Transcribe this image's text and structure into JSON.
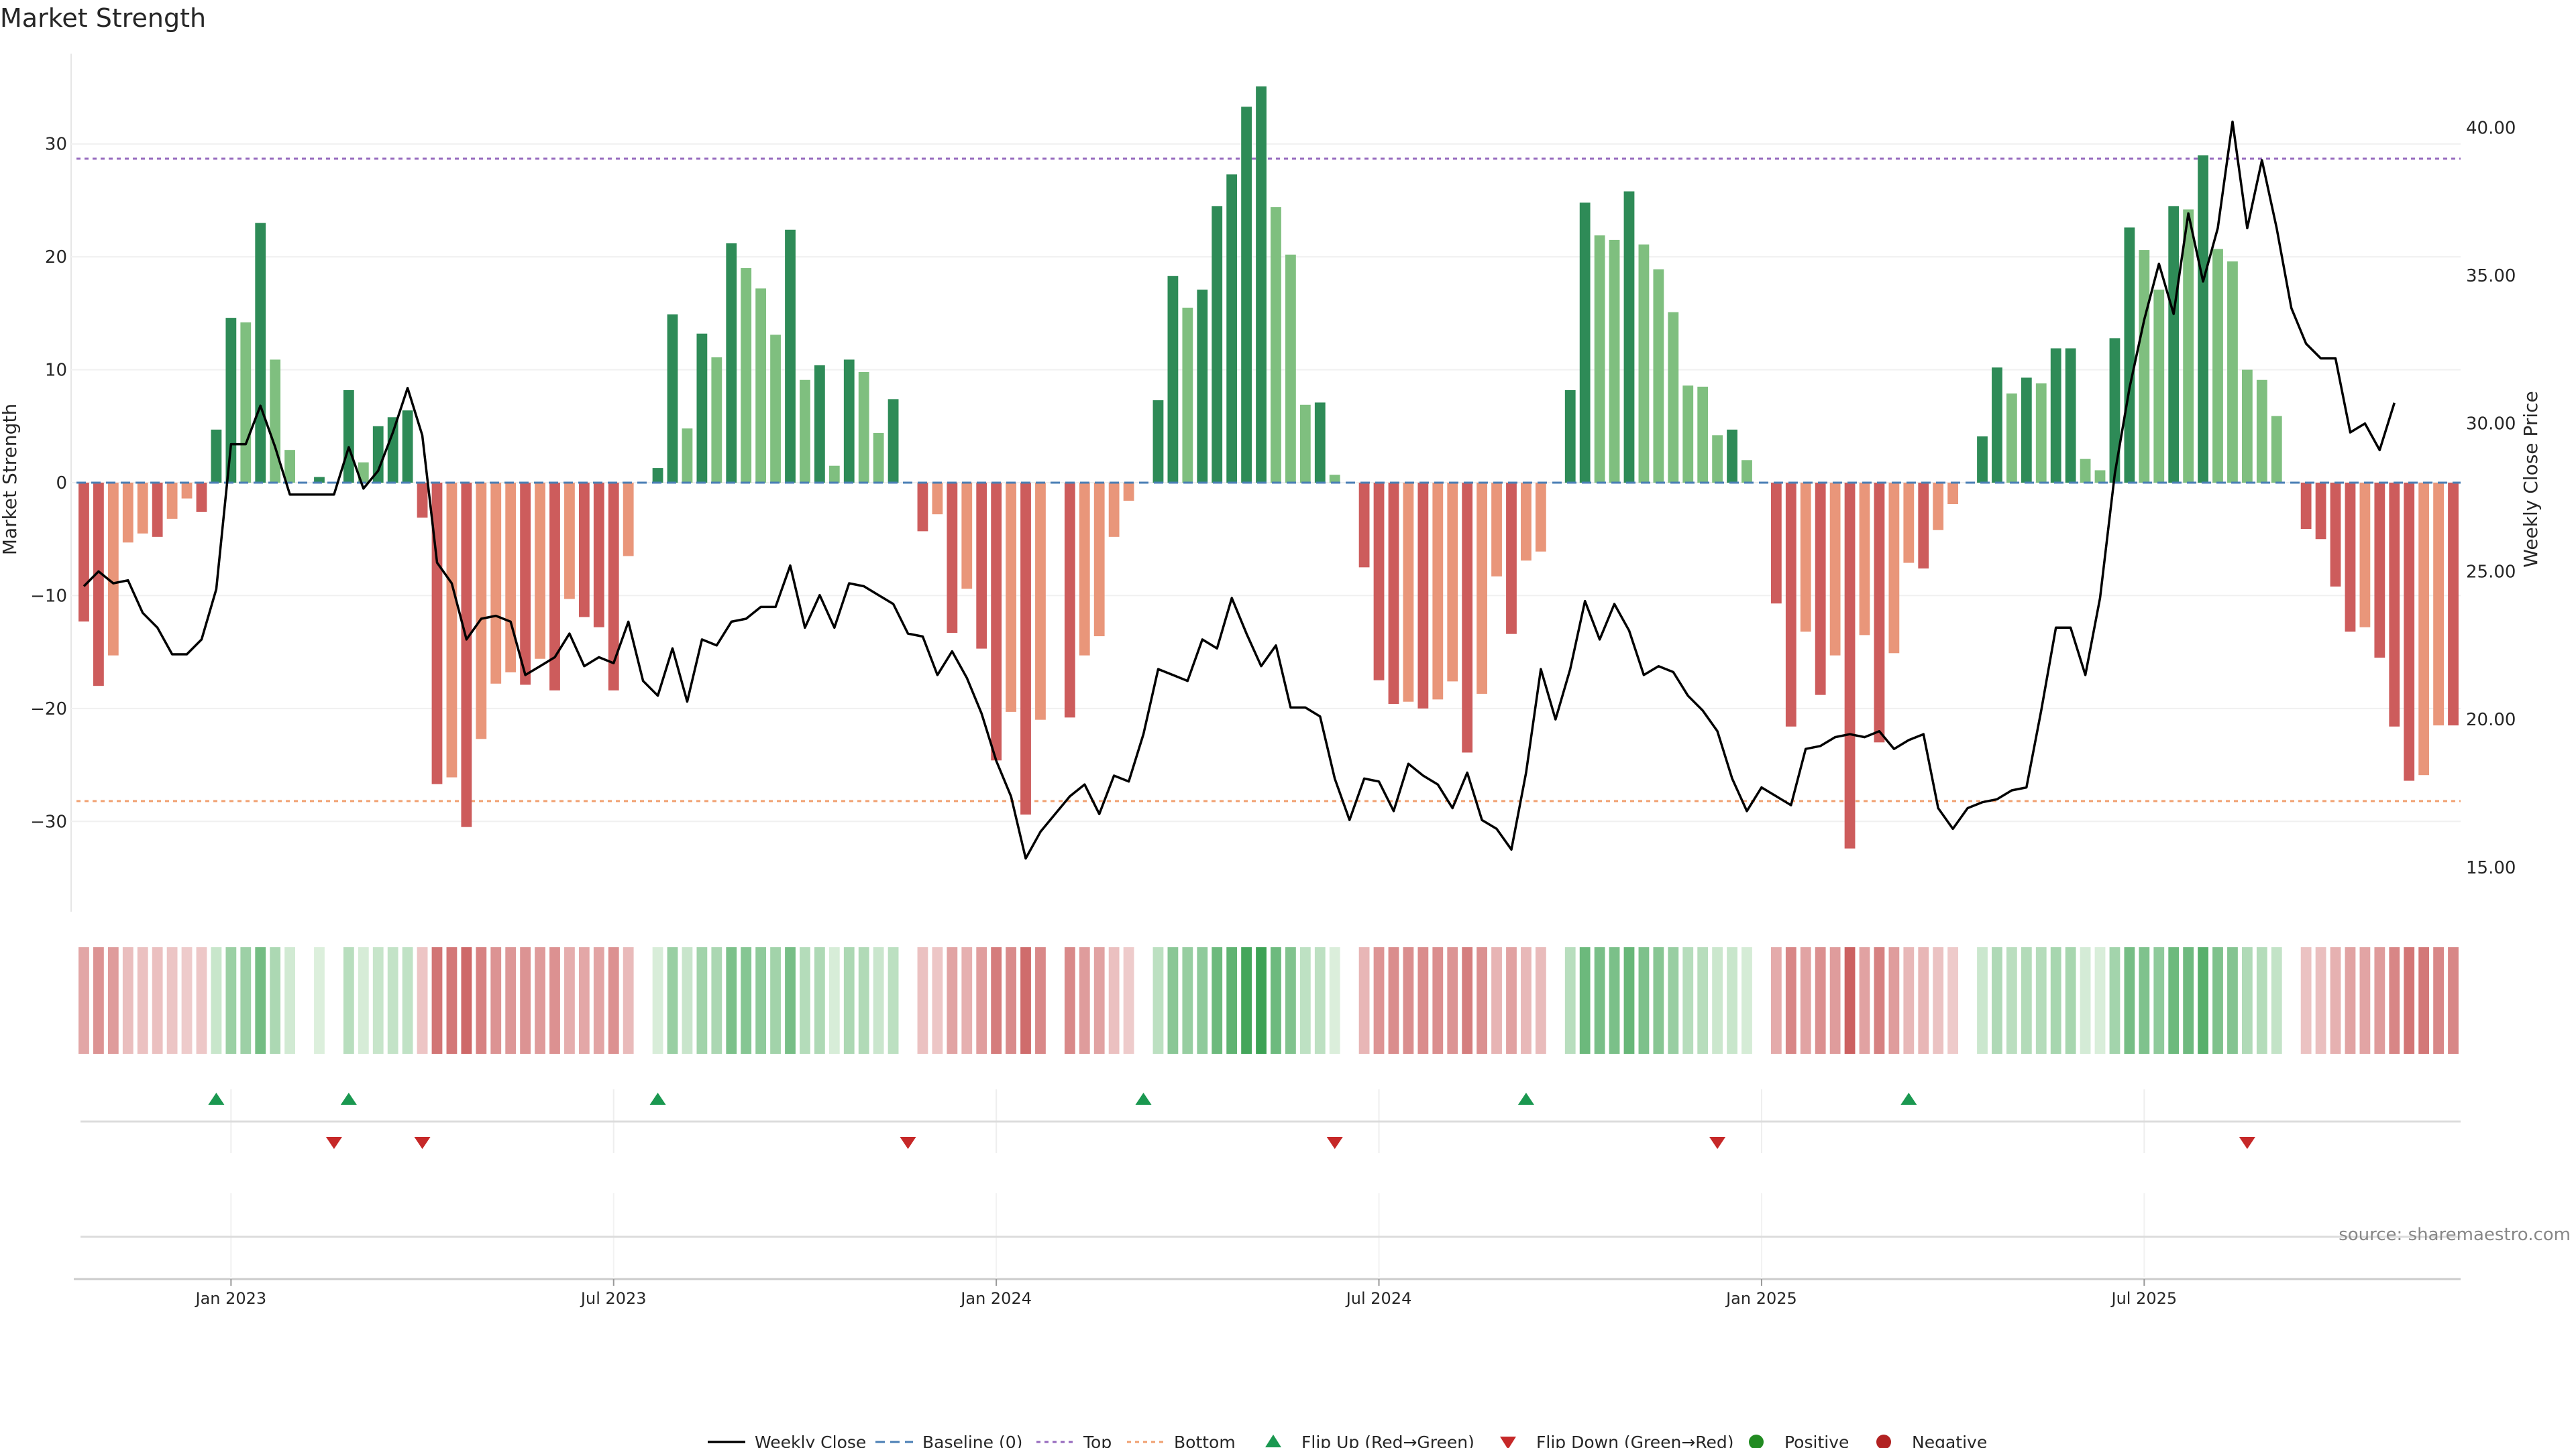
{
  "chart_data": {
    "type": "bar",
    "title": "Market Strength",
    "ylabel": "Market Strength",
    "y2label": "Weekly Close Price",
    "source": "source: sharemaestro.com",
    "ylim": [
      -38,
      38
    ],
    "y2lim": [
      13.5,
      42.5
    ],
    "yticks": [
      30,
      20,
      10,
      0,
      -10,
      -20,
      -30
    ],
    "ytick_labels": [
      "30",
      "20",
      "10",
      "0",
      "−10",
      "−20",
      "−30"
    ],
    "y2ticks": [
      40,
      35,
      30,
      25,
      20,
      15
    ],
    "y2tick_labels": [
      "40.00",
      "35.00",
      "30.00",
      "25.00",
      "20.00",
      "15.00"
    ],
    "xticks": [
      {
        "week": 10,
        "label": "Jan 2023"
      },
      {
        "week": 36,
        "label": "Jul 2023"
      },
      {
        "week": 62,
        "label": "Jan 2024"
      },
      {
        "week": 88,
        "label": "Jul 2024"
      },
      {
        "week": 114,
        "label": "Jan 2025"
      },
      {
        "week": 140,
        "label": "Jul 2025"
      }
    ],
    "thresholds": {
      "top": 28.7,
      "bottom": -28.2
    },
    "strength": [
      -12.3,
      -18,
      -15.3,
      -5.3,
      -4.5,
      -4.8,
      -3.2,
      -1.4,
      -2.6,
      4.7,
      14.6,
      14.2,
      23,
      10.9,
      2.9,
      0,
      0.5,
      0,
      8.2,
      1.8,
      5,
      5.8,
      6.4,
      -3.1,
      -26.7,
      -26.1,
      -30.5,
      -22.7,
      -17.8,
      -16.8,
      -17.9,
      -15.6,
      -18.4,
      -10.3,
      -11.9,
      -12.8,
      -18.4,
      -6.5,
      0,
      1.3,
      14.9,
      4.8,
      13.2,
      11.1,
      21.2,
      19,
      17.2,
      13.1,
      22.4,
      9.1,
      10.4,
      1.5,
      10.9,
      9.8,
      4.4,
      7.4,
      0,
      -4.3,
      -2.8,
      -13.3,
      -9.4,
      -14.7,
      -24.6,
      -20.3,
      -29.4,
      -21,
      0,
      -20.8,
      -15.3,
      -13.6,
      -4.8,
      -1.6,
      0,
      7.3,
      18.3,
      15.5,
      17.1,
      24.5,
      27.3,
      33.3,
      35.1,
      24.4,
      20.2,
      6.9,
      7.1,
      0.7,
      0,
      -7.5,
      -17.5,
      -19.6,
      -19.4,
      -20,
      -19.2,
      -17.6,
      -23.9,
      -18.7,
      -8.3,
      -13.4,
      -6.9,
      -6.1,
      0,
      8.2,
      24.8,
      21.9,
      21.5,
      25.8,
      21.1,
      18.9,
      15.1,
      8.6,
      8.5,
      4.2,
      4.7,
      2,
      0,
      -10.7,
      -21.6,
      -13.2,
      -18.8,
      -15.3,
      -32.4,
      -13.5,
      -23,
      -15.1,
      -7.1,
      -7.6,
      -4.2,
      -1.9,
      0,
      4.1,
      10.2,
      7.9,
      9.3,
      8.8,
      11.9,
      11.9,
      2.1,
      1.1,
      12.8,
      22.6,
      20.6,
      17.1,
      24.5,
      24.2,
      29,
      20.7,
      19.6,
      10,
      9.1,
      5.9,
      0,
      -4.1,
      -5,
      -9.2,
      -13.2,
      -12.8,
      -15.5,
      -21.6,
      -26.4,
      -25.9,
      -21.5,
      -21.5
    ],
    "close": [
      24.5,
      25,
      24.6,
      24.7,
      23.6,
      23.1,
      22.2,
      22.2,
      22.7,
      24.4,
      29.3,
      29.3,
      30.6,
      29.2,
      27.6,
      27.6,
      27.6,
      27.6,
      29.2,
      27.8,
      28.4,
      29.7,
      31.2,
      29.6,
      25.3,
      24.6,
      22.7,
      23.4,
      23.5,
      23.3,
      21.5,
      21.8,
      22.1,
      22.9,
      21.8,
      22.1,
      21.9,
      23.3,
      21.3,
      20.8,
      22.4,
      20.6,
      22.7,
      22.5,
      23.3,
      23.4,
      23.8,
      23.8,
      25.2,
      23.1,
      24.2,
      23.1,
      24.6,
      24.5,
      24.2,
      23.9,
      22.9,
      22.8,
      21.5,
      22.3,
      21.4,
      20.2,
      18.6,
      17.4,
      15.3,
      16.2,
      16.8,
      17.4,
      17.8,
      16.8,
      18.1,
      17.9,
      19.5,
      21.7,
      21.5,
      21.3,
      22.7,
      22.4,
      24.1,
      22.9,
      21.8,
      22.5,
      20.4,
      20.4,
      20.1,
      18,
      16.6,
      18,
      17.9,
      16.9,
      18.5,
      18.1,
      17.8,
      17,
      18.2,
      16.6,
      16.3,
      15.6,
      18.2,
      21.7,
      20,
      21.7,
      24,
      22.7,
      23.9,
      23,
      21.5,
      21.8,
      21.6,
      20.8,
      20.3,
      19.6,
      18,
      16.9,
      17.7,
      17.4,
      17.1,
      19,
      19.1,
      19.4,
      19.5,
      19.4,
      19.6,
      19,
      19.3,
      19.5,
      17,
      16.3,
      17,
      17.2,
      17.3,
      17.6,
      17.7,
      20.3,
      23.1,
      23.1,
      21.5,
      24.1,
      28.3,
      31.2,
      33.5,
      35.4,
      33.7,
      37.1,
      34.8,
      36.6,
      40.2,
      36.6,
      38.9,
      36.6,
      33.9,
      32.7,
      32.2,
      32.2,
      29.7,
      30,
      29.1,
      30.7
    ],
    "flip_up_weeks": [
      9,
      18,
      39,
      72,
      98,
      124
    ],
    "flip_down_weeks": [
      17,
      23,
      56,
      85,
      111,
      147
    ],
    "legend": [
      {
        "key": "close",
        "label": "Weekly Close"
      },
      {
        "key": "baseline",
        "label": "Baseline (0)"
      },
      {
        "key": "top",
        "label": "Top"
      },
      {
        "key": "bottom",
        "label": "Bottom"
      },
      {
        "key": "flip_up",
        "label": "Flip Up (Red→Green)"
      },
      {
        "key": "flip_down",
        "label": "Flip Down (Green→Red)"
      },
      {
        "key": "positive",
        "label": "Positive"
      },
      {
        "key": "negative",
        "label": "Negative"
      }
    ],
    "colors": {
      "pos_strong": "#2e8b57",
      "pos_light": "#7fbf7f",
      "neg_strong": "#cd5c5c",
      "neg_light": "#e9967a",
      "close": "#000000",
      "baseline": "#4a7fb5",
      "top": "#9467bd",
      "bottom": "#f0a070",
      "flip_up": "#1a9850",
      "flip_down": "#c62828",
      "positive_dot": "#228b22",
      "negative_dot": "#b22222",
      "text": "#262626",
      "source": "#888888"
    }
  }
}
